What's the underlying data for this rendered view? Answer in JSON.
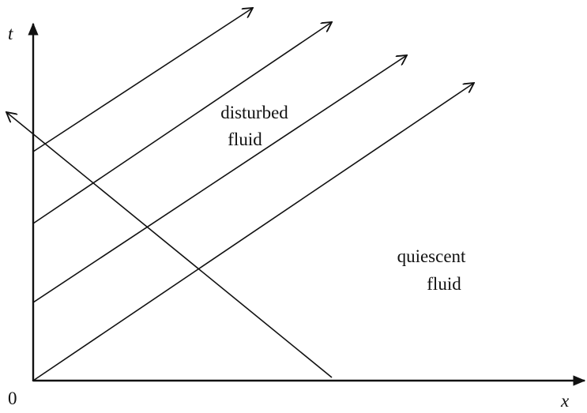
{
  "axes": {
    "t_label": "t",
    "x_label": "x",
    "origin_label": "0"
  },
  "regions": [
    {
      "lines": [
        "disturbed",
        "fluid"
      ]
    },
    {
      "lines": [
        "quiescent",
        "fluid"
      ]
    }
  ]
}
